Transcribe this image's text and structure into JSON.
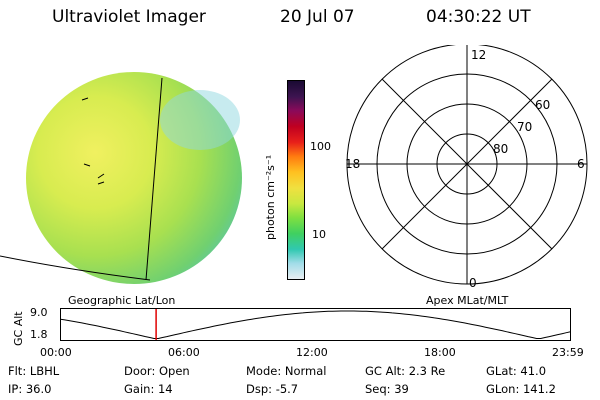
{
  "header": {
    "instrument": "Ultraviolet Imager",
    "date": "20 Jul 07",
    "time": "04:30:22 UT"
  },
  "colorbar": {
    "unit_label": "photon cm⁻²s⁻¹",
    "ticks": [
      "100",
      "10"
    ],
    "colors": [
      "#1a0a33",
      "#3d1450",
      "#8a0a5a",
      "#c00020",
      "#e8201a",
      "#ff7a10",
      "#ffc020",
      "#f0e040",
      "#c8e840",
      "#80e040",
      "#40d060",
      "#30c8b0",
      "#a0dce8",
      "#e8eef2"
    ]
  },
  "image_panel": {
    "label": "Geographic Lat/Lon"
  },
  "polar_plot": {
    "label": "Apex MLat/MLT",
    "mlt_labels": [
      "12",
      "18",
      "6",
      "0"
    ],
    "mlat_labels": [
      "60",
      "70",
      "80"
    ]
  },
  "timeline": {
    "axis_label": "GC Alt",
    "y_ticks": [
      "9.0",
      "1.8"
    ],
    "x_ticks": [
      "00:00",
      "06:00",
      "12:00",
      "18:00",
      "23:59"
    ],
    "marker_time": "04:30"
  },
  "info": {
    "row1": [
      {
        "label": "Flt:",
        "value": "LBHL"
      },
      {
        "label": "Door:",
        "value": "Open"
      },
      {
        "label": "Mode:",
        "value": "Normal"
      },
      {
        "label": "GC Alt:",
        "value": "2.3 Re"
      },
      {
        "label": "GLat:",
        "value": "41.0"
      }
    ],
    "row2": [
      {
        "label": "IP:",
        "value": "36.0"
      },
      {
        "label": "Gain:",
        "value": "14"
      },
      {
        "label": "Dsp:",
        "value": "-5.7"
      },
      {
        "label": "Seq:",
        "value": "39"
      },
      {
        "label": "GLon:",
        "value": "141.2"
      }
    ]
  }
}
